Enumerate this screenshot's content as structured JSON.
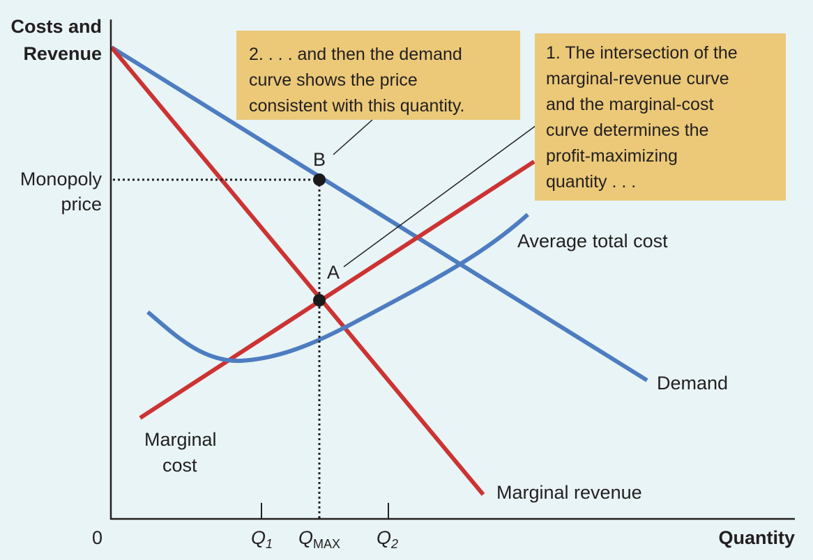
{
  "axes": {
    "y_label_line1": "Costs and",
    "y_label_line2": "Revenue",
    "x_label": "Quantity",
    "origin": "0",
    "price_label_line1": "Monopoly",
    "price_label_line2": "price",
    "q1_main": "Q",
    "q1_sub": "1",
    "qmax_main": "Q",
    "qmax_sub": "MAX",
    "q2_main": "Q",
    "q2_sub": "2"
  },
  "curves": {
    "demand": "Demand",
    "marginal_revenue": "Marginal revenue",
    "marginal_cost_line1": "Marginal",
    "marginal_cost_line2": "cost",
    "average_total_cost": "Average total cost"
  },
  "points": {
    "a": "A",
    "b": "B"
  },
  "callouts": {
    "step2": [
      "2. . . . and then the demand",
      "curve shows the price",
      "consistent with this quantity."
    ],
    "step1": [
      "1. The intersection of the",
      "marginal-revenue curve",
      "and the marginal-cost",
      "curve determines the",
      "profit-maximizing",
      "quantity . . ."
    ]
  },
  "colors": {
    "background": "#e8f4f6",
    "demand_curve": "#4d7cc1",
    "marginal_revenue_curve": "#cc3333",
    "marginal_cost_curve": "#cc3333",
    "average_total_cost_curve": "#4d7cc1",
    "callout_fill": "#ebc978"
  }
}
